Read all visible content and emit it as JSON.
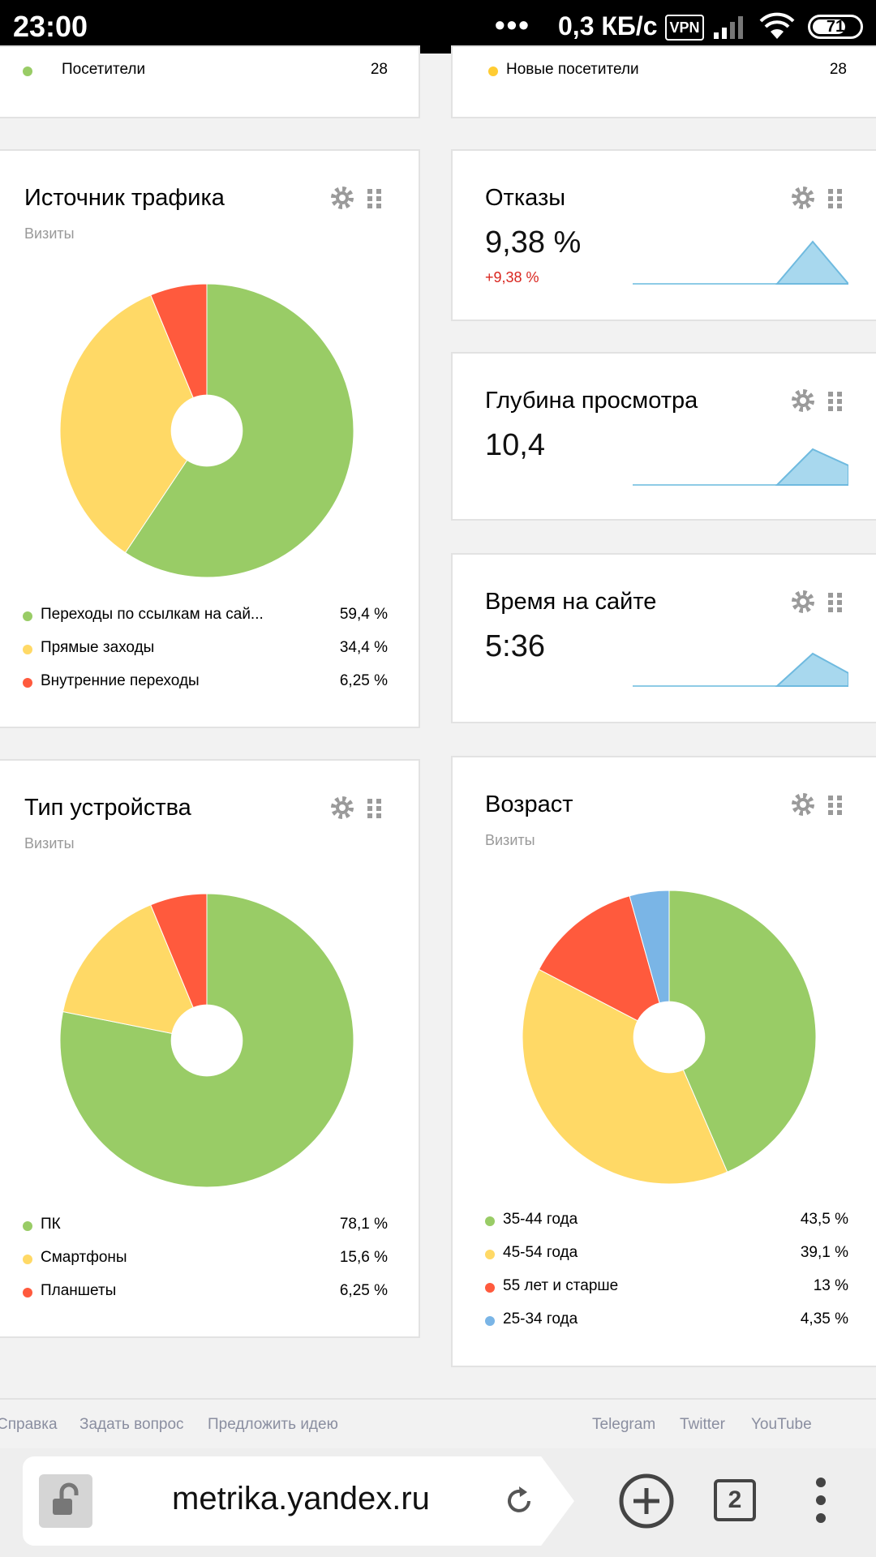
{
  "status_bar": {
    "time": "23:00",
    "dots": "•••",
    "speed": "0,3 КБ/с",
    "vpn": "VPN",
    "battery": "71",
    "battery_level": 0.71
  },
  "top_cards": {
    "visitors": {
      "label": "Посетители",
      "value": "28",
      "color": "#99cc66"
    },
    "new_visitors": {
      "label": "Новые посетители",
      "value": "28",
      "color": "#ffcc33"
    }
  },
  "traffic_source": {
    "title": "Источник трафика",
    "subtitle": "Визиты",
    "legend": [
      {
        "label": "Переходы по ссылкам на сай...",
        "value": "59,4 %",
        "color": "#99cc66"
      },
      {
        "label": "Прямые заходы",
        "value": "34,4 %",
        "color": "#ffd966"
      },
      {
        "label": "Внутренние переходы",
        "value": "6,25 %",
        "color": "#ff5a3d"
      }
    ]
  },
  "bounce": {
    "title": "Отказы",
    "value": "9,38 %",
    "delta": "+9,38 %"
  },
  "depth": {
    "title": "Глубина просмотра",
    "value": "10,4"
  },
  "time_on_site": {
    "title": "Время на сайте",
    "value": "5:36"
  },
  "device_type": {
    "title": "Тип устройства",
    "subtitle": "Визиты",
    "legend": [
      {
        "label": "ПК",
        "value": "78,1 %",
        "color": "#99cc66"
      },
      {
        "label": "Смартфоны",
        "value": "15,6 %",
        "color": "#ffd966"
      },
      {
        "label": "Планшеты",
        "value": "6,25 %",
        "color": "#ff5a3d"
      }
    ]
  },
  "age": {
    "title": "Возраст",
    "subtitle": "Визиты",
    "legend": [
      {
        "label": "35-44 года",
        "value": "43,5 %",
        "color": "#99cc66"
      },
      {
        "label": "45-54 года",
        "value": "39,1 %",
        "color": "#ffd966"
      },
      {
        "label": "55 лет и старше",
        "value": "13 %",
        "color": "#ff5a3d"
      },
      {
        "label": "25-34 года",
        "value": "4,35 %",
        "color": "#7ab5e6"
      }
    ]
  },
  "chart_data": [
    {
      "type": "pie",
      "name": "traffic_source",
      "categories": [
        "Переходы по ссылкам на сай...",
        "Прямые заходы",
        "Внутренние переходы"
      ],
      "values": [
        59.4,
        34.4,
        6.25
      ]
    },
    {
      "type": "pie",
      "name": "device_type",
      "categories": [
        "ПК",
        "Смартфоны",
        "Планшеты"
      ],
      "values": [
        78.1,
        15.6,
        6.25
      ]
    },
    {
      "type": "pie",
      "name": "age",
      "categories": [
        "35-44 года",
        "45-54 года",
        "55 лет и старше",
        "25-34 года"
      ],
      "values": [
        43.5,
        39.1,
        13,
        4.35
      ]
    }
  ],
  "footer": {
    "help": "Справка",
    "ask": "Задать вопрос",
    "suggest": "Предложить идею",
    "telegram": "Telegram",
    "twitter": "Twitter",
    "youtube": "YouTube"
  },
  "browser": {
    "url": "metrika.yandex.ru",
    "tabs_count": "2"
  },
  "colors": {
    "green": "#99cc66",
    "yellow": "#ffd966",
    "red": "#ff5a3d",
    "blue": "#7ab5e6",
    "spark_fill": "#a8d8ee",
    "delta_red": "#d9251e"
  }
}
